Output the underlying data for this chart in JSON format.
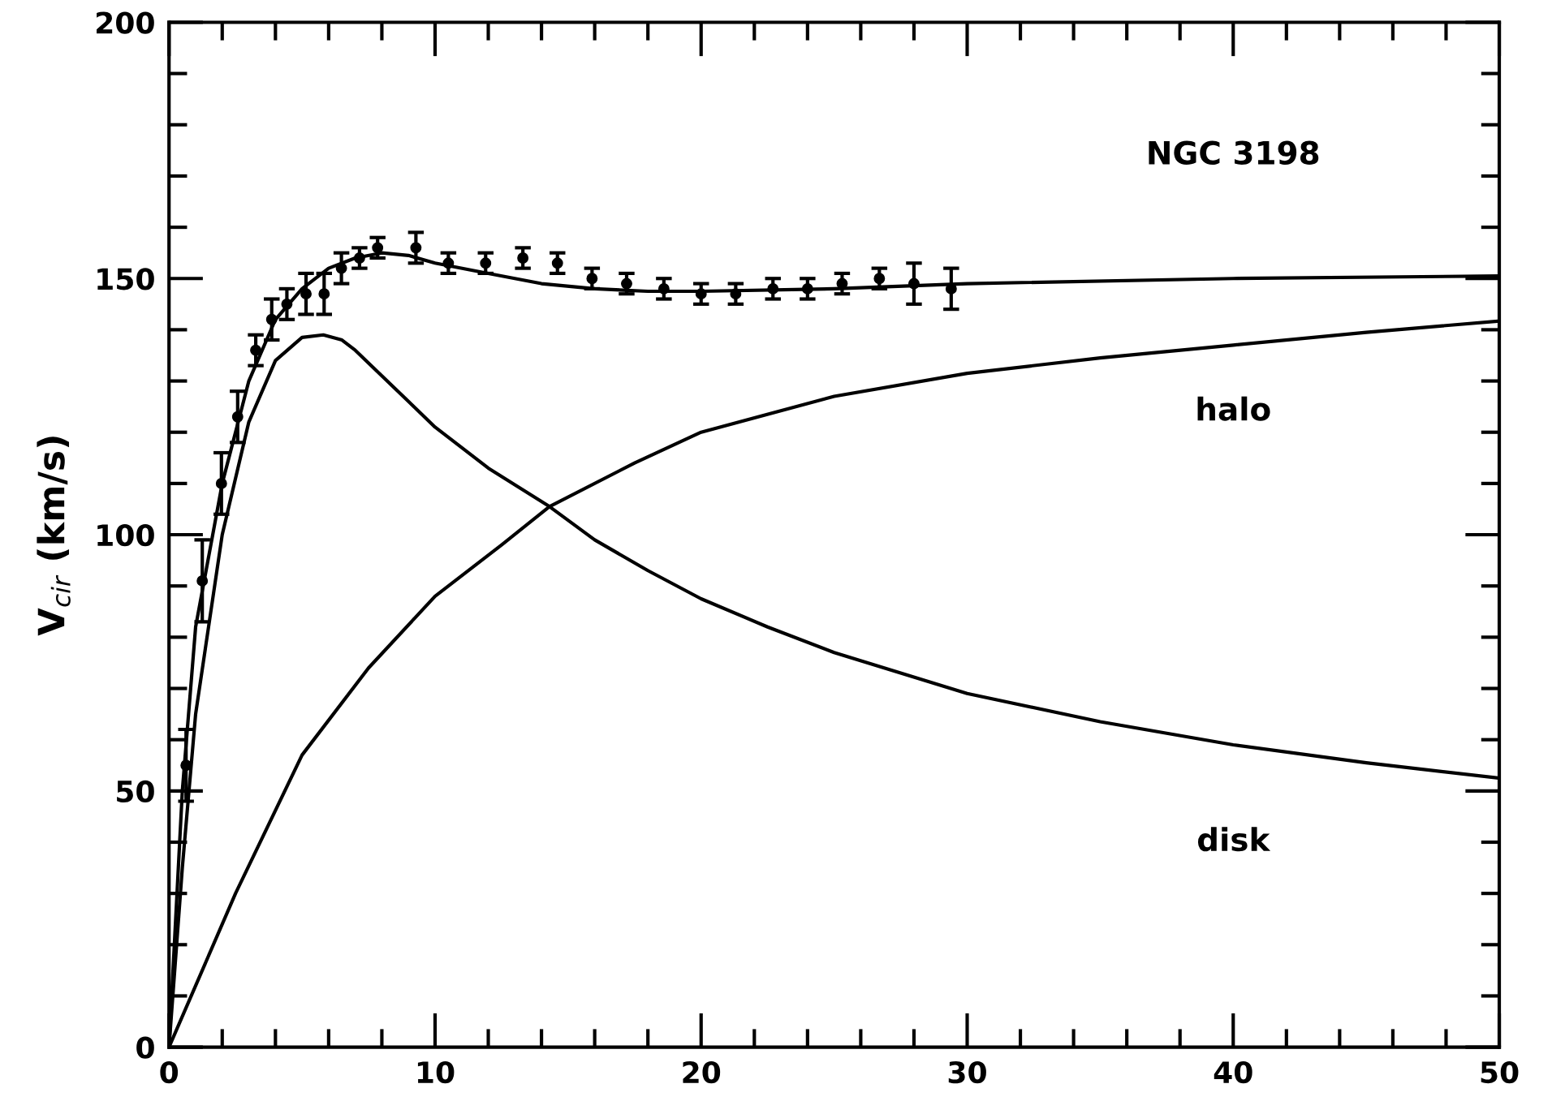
{
  "chart_data": {
    "type": "line",
    "title": "NGC 3198",
    "ylabel": "V$_{cir}$ (km/s)",
    "xlim": [
      0,
      50
    ],
    "ylim": [
      0,
      200
    ],
    "xticks": [
      0,
      10,
      20,
      30,
      40,
      50
    ],
    "yticks": [
      0,
      50,
      100,
      150,
      200
    ],
    "grid": false,
    "legend": false,
    "line_style": "solid",
    "series": [
      {
        "type": "scatter",
        "color": "#000000",
        "marker": "circle",
        "x": [
          0.64,
          1.25,
          1.97,
          2.58,
          3.26,
          3.86,
          4.43,
          5.15,
          5.83,
          6.48,
          7.16,
          7.84,
          9.28,
          10.5,
          11.9,
          13.3,
          14.6,
          15.9,
          17.2,
          18.6,
          20.0,
          21.3,
          22.7,
          24.0,
          25.3,
          26.7,
          28.0,
          29.4
        ],
        "values": [
          55,
          91,
          110,
          123,
          136,
          142,
          145,
          147,
          147,
          152,
          154,
          156,
          156,
          153,
          153,
          154,
          153,
          150,
          149,
          148,
          147,
          147,
          148,
          148,
          149,
          150,
          149,
          148
        ],
        "errors": [
          7,
          8,
          6,
          5,
          3,
          4,
          3,
          4,
          4,
          3,
          2,
          2,
          3,
          2,
          2,
          2,
          2,
          2,
          2,
          2,
          2,
          2,
          2,
          2,
          2,
          2,
          4,
          4
        ]
      },
      {
        "color": "#000000",
        "x": [
          0,
          0.5,
          1,
          2,
          3,
          4,
          5,
          6,
          7,
          8,
          9,
          10,
          12,
          14,
          16,
          18,
          20,
          25,
          30,
          40,
          50
        ],
        "values": [
          0,
          50,
          82,
          110,
          130,
          142,
          148,
          152,
          154,
          155,
          154.5,
          153,
          151,
          149,
          148,
          147.5,
          147.5,
          148,
          149,
          150,
          150.5
        ]
      },
      {
        "color": "#000000",
        "x": [
          0,
          0.5,
          1,
          2,
          3,
          4,
          5,
          5.8,
          6.5,
          7,
          8,
          9,
          10,
          12,
          14.3,
          16,
          18,
          20,
          22.5,
          25,
          30,
          35,
          40,
          45,
          50
        ],
        "values": [
          0,
          35,
          65,
          100,
          122,
          134,
          138.5,
          139,
          138,
          136,
          131,
          126,
          121,
          113,
          105.5,
          99,
          93,
          87.5,
          82,
          77,
          69,
          63.5,
          59,
          55.5,
          52.5
        ]
      },
      {
        "color": "#000000",
        "x": [
          0,
          1,
          2.5,
          5,
          7.5,
          10,
          12.5,
          14.3,
          17.5,
          20,
          25,
          30,
          35,
          40,
          45,
          50
        ],
        "values": [
          0,
          12,
          30,
          57,
          74,
          88,
          98,
          105.5,
          114,
          120,
          127,
          131.5,
          134.5,
          137,
          139.5,
          141.7
        ]
      }
    ],
    "annotations": [
      "halo",
      "disk"
    ]
  }
}
